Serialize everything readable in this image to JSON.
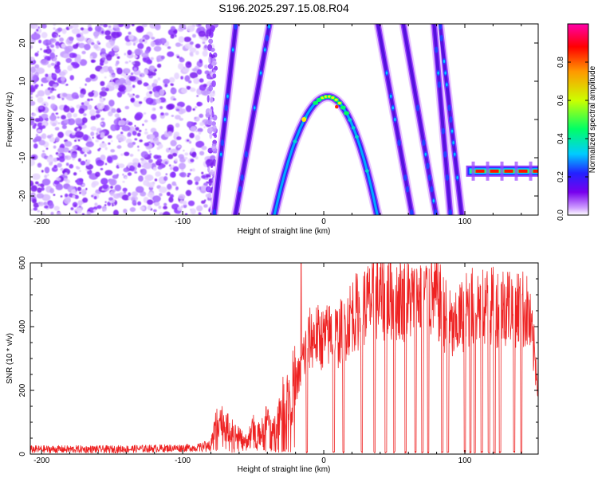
{
  "title": "S196.2025.297.15.08.R04",
  "chart_data": [
    {
      "type": "heatmap",
      "name": "spectrogram",
      "xlabel": "Height of straight line (km)",
      "ylabel": "Frequency (Hz)",
      "xlim": [
        -208,
        152
      ],
      "ylim": [
        -25,
        25
      ],
      "xticks": [
        -200,
        -100,
        0,
        100
      ],
      "yticks": [
        -20,
        -10,
        0,
        10,
        20
      ],
      "colorbar": {
        "label": "Normalized spectral amplitude",
        "range": [
          0,
          1
        ],
        "ticks": [
          "0.0",
          "0.2",
          "0.4",
          "0.6",
          "0.8"
        ],
        "tick_values": [
          0.0,
          0.2,
          0.4,
          0.6,
          0.8
        ],
        "colors": [
          "#ffffff",
          "#cc99ff",
          "#7700ee",
          "#2222ff",
          "#00ccff",
          "#00ff66",
          "#ccff00",
          "#ff9900",
          "#ff0000",
          "#ff00aa"
        ]
      },
      "features": {
        "noise_region_km": [
          -208,
          -78
        ],
        "parabola": {
          "peak_x_km": 3,
          "peak_freq_hz": 6,
          "left_x_km": -35,
          "right_x_km": 38,
          "end_freq_hz": -25
        },
        "diagonal_streaks": [
          {
            "x_at_top_km": -62,
            "x_at_bottom_km": -78
          },
          {
            "x_at_top_km": -38,
            "x_at_bottom_km": -63
          },
          {
            "x_at_top_km": 38,
            "x_at_bottom_km": 63
          },
          {
            "x_at_top_km": 56,
            "x_at_bottom_km": 80
          },
          {
            "x_at_top_km": 82,
            "x_at_bottom_km": 98
          },
          {
            "x_at_top_km": 78,
            "x_at_bottom_km": 90
          }
        ],
        "horizontal_band": {
          "x_start_km": 102,
          "x_end_km": 152,
          "freq_hz": -13.5
        }
      }
    },
    {
      "type": "line",
      "name": "snr",
      "xlabel": "Height of straight line (km)",
      "ylabel": "SNR (10 * v/v)",
      "xlim": [
        -208,
        152
      ],
      "ylim": [
        0,
        600
      ],
      "xticks": [
        -200,
        -100,
        0,
        100
      ],
      "yticks": [
        0,
        200,
        400,
        600
      ],
      "color": "#ee2222",
      "envelope": {
        "x": [
          -208,
          -150,
          -90,
          -80,
          -75,
          -70,
          -62,
          -55,
          -50,
          -45,
          -40,
          -35,
          -30,
          -25,
          -20,
          -16,
          -15,
          -12,
          -10,
          -5,
          0,
          5,
          10,
          15,
          20,
          25,
          30,
          40,
          50,
          60,
          70,
          80,
          88,
          92,
          96,
          100,
          110,
          120,
          130,
          140,
          145,
          148,
          152
        ],
        "y": [
          15,
          15,
          20,
          30,
          120,
          90,
          60,
          40,
          80,
          60,
          110,
          80,
          150,
          180,
          230,
          250,
          300,
          330,
          360,
          370,
          360,
          380,
          370,
          400,
          440,
          450,
          470,
          490,
          490,
          480,
          500,
          490,
          420,
          380,
          420,
          450,
          470,
          460,
          470,
          460,
          440,
          350,
          230
        ]
      },
      "dropout_km": [
        -12,
        7,
        14,
        27,
        36,
        44,
        50,
        58,
        65,
        70,
        74,
        84,
        88,
        100,
        104,
        107,
        112,
        117,
        121,
        125,
        135,
        140
      ],
      "spike": {
        "x_km": -16,
        "y": 600
      }
    }
  ]
}
